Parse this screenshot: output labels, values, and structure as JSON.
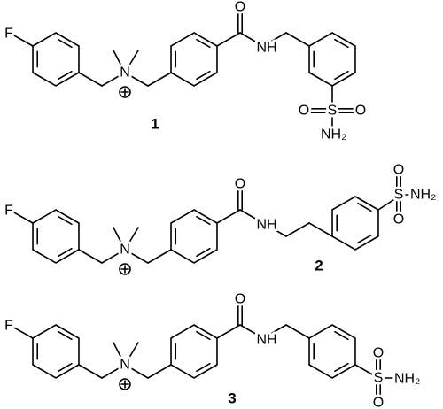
{
  "molecules": [
    {
      "label": "1",
      "atoms": [
        "F",
        "N",
        "O",
        "NH",
        "S",
        "O",
        "O",
        "NH₂"
      ]
    },
    {
      "label": "2",
      "atoms": [
        "F",
        "N",
        "O",
        "NH",
        "S",
        "O",
        "O",
        "NH₂"
      ]
    },
    {
      "label": "3",
      "atoms": [
        "F",
        "N",
        "O",
        "NH",
        "S",
        "O",
        "O",
        "NH₂"
      ]
    }
  ]
}
